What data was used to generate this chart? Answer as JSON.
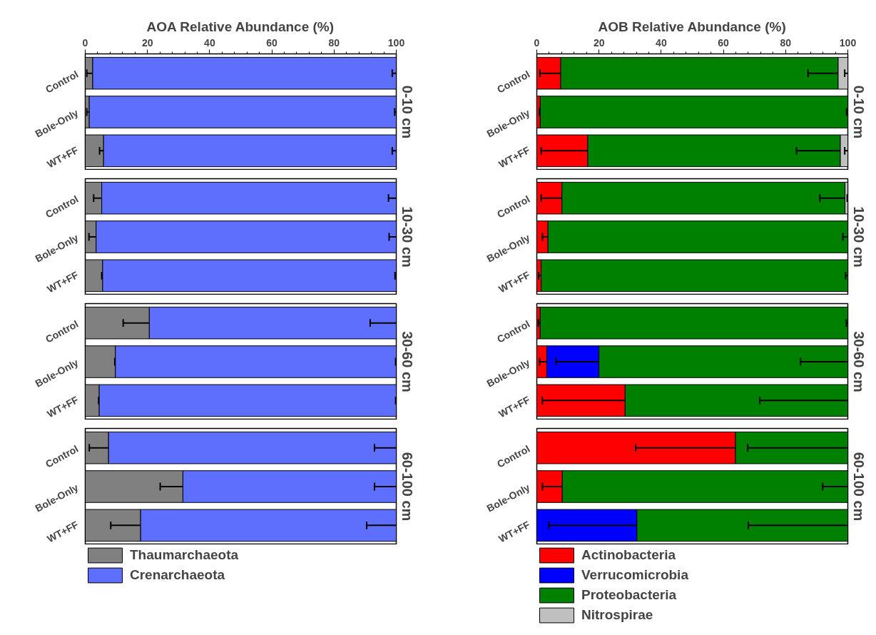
{
  "chart_data": [
    {
      "type": "bar",
      "orientation": "horizontal",
      "stacked": true,
      "xlabel": "AOA Relative Abundance (%)",
      "y2label": "0-10 cm",
      "xlim": [
        0,
        100
      ],
      "xticks": [
        0,
        20,
        40,
        60,
        80,
        100
      ],
      "grid": false,
      "categories": [
        "Control",
        "Bole-Only",
        "WT+FF"
      ],
      "series": [
        {
          "color": "#808080",
          "values": [
            2.4,
            1.3,
            5.9
          ],
          "errors": [
            [
              0.5,
              2.4
            ],
            [
              0.5,
              1.3
            ],
            [
              4.6,
              5.9
            ]
          ]
        },
        {
          "color": "#5f6ffd",
          "values": [
            97.6,
            98.7,
            94.1
          ],
          "errors": [
            [
              98.7,
              100
            ],
            [
              99.5,
              100
            ],
            [
              98.7,
              100
            ]
          ]
        }
      ]
    },
    {
      "type": "bar",
      "orientation": "horizontal",
      "stacked": true,
      "xlabel": "AOB Relative Abundance (%)",
      "y2label": "0-10 cm",
      "xlim": [
        0,
        100
      ],
      "xticks": [
        0,
        20,
        40,
        60,
        80,
        100
      ],
      "grid": false,
      "categories": [
        "Control",
        "Bole-Only",
        "WT+FF"
      ],
      "series": [
        {
          "color": "#ff0000",
          "values": [
            7.7,
            1.1,
            16.4
          ],
          "errors": [
            [
              1.0,
              7.7
            ],
            [
              0.8,
              1.1
            ],
            [
              1.4,
              16.4
            ]
          ]
        },
        {
          "color": "#008000",
          "values": [
            89.2,
            98.9,
            81.2
          ],
          "errors": [
            [
              87.2,
              96.9
            ],
            [
              99.6,
              100
            ],
            [
              83.5,
              97.6
            ]
          ]
        },
        {
          "color": "#c0c0c0",
          "values": [
            3.1,
            null,
            2.4
          ],
          "errors": [
            [
              99.0,
              100
            ],
            null,
            [
              99.0,
              100
            ]
          ]
        }
      ]
    },
    {
      "type": "bar",
      "orientation": "horizontal",
      "stacked": true,
      "y2label": "10-30 cm",
      "xlim": [
        0,
        100
      ],
      "tick_labels": "y",
      "grid": false,
      "categories": [
        "Control",
        "Bole-Only",
        "WT+FF"
      ],
      "series": [
        {
          "color": "#808080",
          "values": [
            5.3,
            3.5,
            5.6
          ],
          "errors": [
            [
              2.7,
              5.3
            ],
            [
              1.2,
              3.5
            ],
            [
              5.3,
              5.6
            ]
          ]
        },
        {
          "color": "#5f6ffd",
          "values": [
            94.7,
            96.5,
            94.4
          ],
          "errors": [
            [
              97.5,
              100
            ],
            [
              97.7,
              100
            ],
            [
              99.6,
              100
            ]
          ]
        }
      ]
    },
    {
      "type": "bar",
      "orientation": "horizontal",
      "stacked": true,
      "y2label": "10-30 cm",
      "xlim": [
        0,
        100
      ],
      "tick_labels": "y",
      "grid": false,
      "categories": [
        "Control",
        "Bole-Only",
        "WT+FF"
      ],
      "series": [
        {
          "color": "#ff0000",
          "values": [
            8.1,
            3.6,
            1.4
          ],
          "errors": [
            [
              1.4,
              8.1
            ],
            [
              1.8,
              3.6
            ],
            [
              0.6,
              1.4
            ]
          ]
        },
        {
          "color": "#008000",
          "values": [
            91.0,
            96.4,
            98.6
          ],
          "errors": [
            [
              91.0,
              99.1
            ],
            [
              98.4,
              100
            ],
            [
              99.3,
              100
            ]
          ]
        },
        {
          "color": "#c0c0c0",
          "values": [
            0.9,
            null,
            null
          ],
          "errors": [
            [
              99.8,
              100
            ],
            null,
            null
          ]
        }
      ]
    },
    {
      "type": "bar",
      "orientation": "horizontal",
      "stacked": true,
      "y2label": "30-60 cm",
      "xlim": [
        0,
        100
      ],
      "tick_labels": "y",
      "grid": false,
      "categories": [
        "Control",
        "Bole-Only",
        "WT+FF"
      ],
      "series": [
        {
          "color": "#808080",
          "values": [
            20.6,
            9.7,
            4.5
          ],
          "errors": [
            [
              12.2,
              20.6
            ],
            [
              9.5,
              9.7
            ],
            [
              4.3,
              4.5
            ]
          ]
        },
        {
          "color": "#5f6ffd",
          "values": [
            79.4,
            90.3,
            95.5
          ],
          "errors": [
            [
              91.6,
              100
            ],
            [
              99.8,
              100
            ],
            [
              99.8,
              100
            ]
          ]
        }
      ]
    },
    {
      "type": "bar",
      "orientation": "horizontal",
      "stacked": true,
      "y2label": "30-60 cm",
      "xlim": [
        0,
        100
      ],
      "tick_labels": "y",
      "grid": false,
      "categories": [
        "Control",
        "Bole-Only",
        "WT+FF"
      ],
      "series": [
        {
          "color": "#ff0000",
          "values": [
            1.1,
            3.2,
            28.4
          ],
          "errors": [
            [
              0.5,
              1.1
            ],
            [
              0.9,
              3.2
            ],
            [
              1.8,
              28.4
            ]
          ]
        },
        {
          "color": "#0000ff",
          "values": [
            null,
            16.8,
            null
          ],
          "errors": [
            null,
            [
              6.2,
              20.0
            ],
            null
          ]
        },
        {
          "color": "#008000",
          "values": [
            98.9,
            80.0,
            71.6
          ],
          "errors": [
            [
              99.5,
              100
            ],
            [
              84.8,
              100
            ],
            [
              71.7,
              100
            ]
          ]
        }
      ]
    },
    {
      "type": "bar",
      "orientation": "horizontal",
      "stacked": true,
      "y2label": "60-100 cm",
      "xlim": [
        0,
        100
      ],
      "tick_labels": "y",
      "grid": false,
      "legend": "bottom",
      "categories": [
        "Control",
        "Bole-Only",
        "WT+FF"
      ],
      "series": [
        {
          "name": "Thaumarchaeota",
          "color": "#808080",
          "values": [
            7.5,
            31.4,
            17.8
          ],
          "errors": [
            [
              1.3,
              7.5
            ],
            [
              24.1,
              31.4
            ],
            [
              8.2,
              17.8
            ]
          ]
        },
        {
          "name": "Crenarchaeota",
          "color": "#5f6ffd",
          "values": [
            92.5,
            68.6,
            82.2
          ],
          "errors": [
            [
              93.0,
              100
            ],
            [
              93.0,
              100
            ],
            [
              90.5,
              100
            ]
          ]
        }
      ]
    },
    {
      "type": "bar",
      "orientation": "horizontal",
      "stacked": true,
      "y2label": "60-100 cm",
      "xlim": [
        0,
        100
      ],
      "tick_labels": "y",
      "grid": false,
      "legend": "bottom",
      "categories": [
        "Control",
        "Bole-Only",
        "WT+FF"
      ],
      "series": [
        {
          "name": "Actinobacteria",
          "color": "#ff0000",
          "values": [
            63.9,
            8.2,
            null
          ],
          "errors": [
            [
              31.8,
              63.9
            ],
            [
              1.8,
              8.2
            ],
            null
          ]
        },
        {
          "name": "Verrucomicrobia",
          "color": "#0000ff",
          "values": [
            null,
            null,
            32.2
          ],
          "errors": [
            null,
            null,
            [
              3.9,
              32.2
            ]
          ]
        },
        {
          "name": "Proteobacteria",
          "color": "#008000",
          "values": [
            36.1,
            91.8,
            67.8
          ],
          "errors": [
            [
              67.8,
              100
            ],
            [
              91.9,
              100
            ],
            [
              68.0,
              100
            ]
          ]
        },
        {
          "name": "Nitrospirae",
          "color": "#c0c0c0",
          "values": [
            null,
            null,
            null
          ]
        }
      ]
    }
  ]
}
